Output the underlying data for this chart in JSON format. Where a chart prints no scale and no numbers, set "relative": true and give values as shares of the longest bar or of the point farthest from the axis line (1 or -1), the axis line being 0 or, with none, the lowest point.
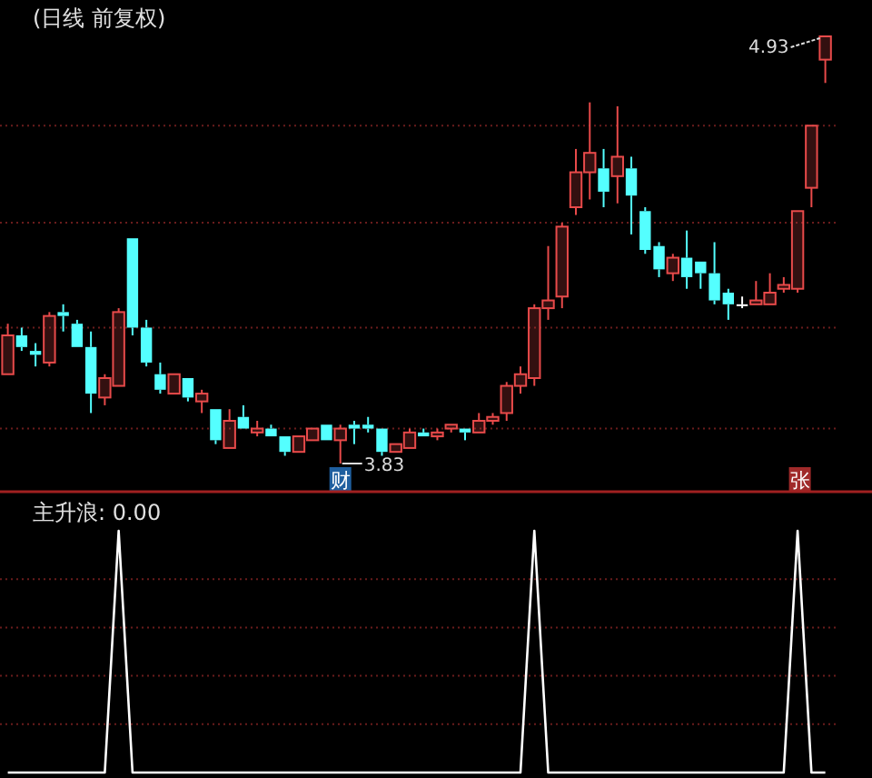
{
  "chart_data": [
    {
      "type": "candlestick",
      "title": "(日线 前复权)",
      "ref_lines": [
        {
          "axis": "y",
          "value": 4.7,
          "color": "#6a1c1c",
          "line_style": "dotted"
        },
        {
          "axis": "y",
          "value": 4.45,
          "color": "#6a1c1c",
          "line_style": "dotted"
        },
        {
          "axis": "y",
          "value": 4.18,
          "color": "#6a1c1c",
          "line_style": "dotted"
        },
        {
          "axis": "y",
          "value": 3.92,
          "color": "#6a1c1c",
          "line_style": "dotted"
        }
      ],
      "categories": [
        null,
        null,
        null,
        null,
        null,
        null,
        null,
        null,
        null,
        null,
        null,
        null,
        null,
        null,
        null,
        null,
        null,
        null,
        null,
        null,
        null,
        null,
        null,
        null,
        null,
        null,
        null,
        null,
        null,
        null,
        null,
        null,
        null,
        null,
        null,
        null,
        null,
        null,
        null,
        null,
        null,
        null,
        null,
        null,
        null,
        null,
        null,
        null,
        null,
        null,
        null,
        null,
        null,
        null,
        null,
        null,
        null,
        null,
        null,
        null
      ],
      "ohlc": [
        [
          4.06,
          4.19,
          4.06,
          4.16
        ],
        [
          4.16,
          4.18,
          4.12,
          4.13
        ],
        [
          4.12,
          4.14,
          4.08,
          4.11
        ],
        [
          4.09,
          4.22,
          4.08,
          4.21
        ],
        [
          4.22,
          4.24,
          4.17,
          4.21
        ],
        [
          4.19,
          4.2,
          4.13,
          4.13
        ],
        [
          4.13,
          4.17,
          3.96,
          4.01
        ],
        [
          4.0,
          4.06,
          3.98,
          4.05
        ],
        [
          4.03,
          4.23,
          4.03,
          4.22
        ],
        [
          4.41,
          4.41,
          4.16,
          4.18
        ],
        [
          4.18,
          4.2,
          4.08,
          4.09
        ],
        [
          4.06,
          4.09,
          4.01,
          4.02
        ],
        [
          4.01,
          4.06,
          4.01,
          4.06
        ],
        [
          4.05,
          4.05,
          3.99,
          4.0
        ],
        [
          3.99,
          4.02,
          3.96,
          4.01
        ],
        [
          3.97,
          3.97,
          3.88,
          3.89
        ],
        [
          3.87,
          3.97,
          3.87,
          3.94
        ],
        [
          3.95,
          3.98,
          3.92,
          3.92
        ],
        [
          3.91,
          3.94,
          3.9,
          3.92
        ],
        [
          3.92,
          3.93,
          3.9,
          3.9
        ],
        [
          3.9,
          3.9,
          3.85,
          3.86
        ],
        [
          3.86,
          3.9,
          3.86,
          3.9
        ],
        [
          3.89,
          3.92,
          3.89,
          3.92
        ],
        [
          3.93,
          3.93,
          3.89,
          3.89
        ],
        [
          3.89,
          3.93,
          3.83,
          3.92
        ],
        [
          3.93,
          3.94,
          3.88,
          3.92
        ],
        [
          3.93,
          3.95,
          3.91,
          3.92
        ],
        [
          3.92,
          3.92,
          3.85,
          3.86
        ],
        [
          3.86,
          3.88,
          3.86,
          3.88
        ],
        [
          3.87,
          3.92,
          3.87,
          3.91
        ],
        [
          3.91,
          3.92,
          3.9,
          3.9
        ],
        [
          3.9,
          3.92,
          3.89,
          3.91
        ],
        [
          3.92,
          3.93,
          3.91,
          3.93
        ],
        [
          3.92,
          3.92,
          3.89,
          3.91
        ],
        [
          3.91,
          3.96,
          3.91,
          3.94
        ],
        [
          3.94,
          3.96,
          3.93,
          3.95
        ],
        [
          3.96,
          4.04,
          3.94,
          4.03
        ],
        [
          4.03,
          4.08,
          4.01,
          4.06
        ],
        [
          4.05,
          4.24,
          4.03,
          4.23
        ],
        [
          4.23,
          4.39,
          4.2,
          4.25
        ],
        [
          4.26,
          4.45,
          4.23,
          4.44
        ],
        [
          4.49,
          4.64,
          4.47,
          4.58
        ],
        [
          4.58,
          4.76,
          4.51,
          4.63
        ],
        [
          4.59,
          4.64,
          4.49,
          4.53
        ],
        [
          4.57,
          4.75,
          4.5,
          4.62
        ],
        [
          4.59,
          4.62,
          4.42,
          4.52
        ],
        [
          4.48,
          4.49,
          4.37,
          4.38
        ],
        [
          4.39,
          4.4,
          4.31,
          4.33
        ],
        [
          4.32,
          4.37,
          4.3,
          4.36
        ],
        [
          4.36,
          4.43,
          4.28,
          4.31
        ],
        [
          4.35,
          4.35,
          4.28,
          4.32
        ],
        [
          4.32,
          4.4,
          4.24,
          4.25
        ],
        [
          4.27,
          4.28,
          4.2,
          4.24
        ],
        [
          4.24,
          4.26,
          4.23,
          4.24
        ],
        [
          4.24,
          4.3,
          4.24,
          4.25
        ],
        [
          4.24,
          4.32,
          4.24,
          4.27
        ],
        [
          4.28,
          4.31,
          4.27,
          4.29
        ],
        [
          4.28,
          4.48,
          4.27,
          4.48
        ],
        [
          4.54,
          4.7,
          4.49,
          4.7
        ],
        [
          4.87,
          4.93,
          4.81,
          4.93
        ]
      ],
      "colors": [
        "#e84a4a",
        "#54ffff",
        "#54ffff",
        "#e84a4a",
        "#54ffff",
        "#54ffff",
        "#54ffff",
        "#e84a4a",
        "#e84a4a",
        "#54ffff",
        "#54ffff",
        "#54ffff",
        "#e84a4a",
        "#54ffff",
        "#e84a4a",
        "#54ffff",
        "#e84a4a",
        "#54ffff",
        "#e84a4a",
        "#54ffff",
        "#54ffff",
        "#e84a4a",
        "#e84a4a",
        "#54ffff",
        "#e84a4a",
        "#54ffff",
        "#54ffff",
        "#54ffff",
        "#e84a4a",
        "#e84a4a",
        "#54ffff",
        "#e84a4a",
        "#e84a4a",
        "#54ffff",
        "#e84a4a",
        "#e84a4a",
        "#e84a4a",
        "#e84a4a",
        "#e84a4a",
        "#e84a4a",
        "#e84a4a",
        "#e84a4a",
        "#e84a4a",
        "#54ffff",
        "#e84a4a",
        "#54ffff",
        "#54ffff",
        "#54ffff",
        "#e84a4a",
        "#54ffff",
        "#54ffff",
        "#54ffff",
        "#54ffff",
        "#ffffff",
        "#e84a4a",
        "#e84a4a",
        "#e84a4a",
        "#e84a4a",
        "#e84a4a",
        "#e84a4a"
      ],
      "annotations": [
        "4.93",
        "3.83",
        "财",
        "张"
      ]
    },
    {
      "type": "line",
      "title": "主升浪: 0.00",
      "relative": true,
      "ref_lines": [
        {
          "axis": "y",
          "value": 0.8,
          "color": "#6a1c1c",
          "line_style": "dotted"
        },
        {
          "axis": "y",
          "value": 0.6,
          "color": "#6a1c1c",
          "line_style": "dotted"
        },
        {
          "axis": "y",
          "value": 0.4,
          "color": "#6a1c1c",
          "line_style": "dotted"
        },
        {
          "axis": "y",
          "value": 0.2,
          "color": "#6a1c1c",
          "line_style": "dotted"
        }
      ],
      "categories": [
        null,
        null,
        null,
        null,
        null,
        null,
        null,
        null,
        null,
        null,
        null,
        null,
        null,
        null,
        null,
        null,
        null,
        null,
        null,
        null,
        null,
        null,
        null,
        null,
        null,
        null,
        null,
        null,
        null,
        null,
        null,
        null,
        null,
        null,
        null,
        null,
        null,
        null,
        null,
        null,
        null,
        null,
        null,
        null,
        null,
        null,
        null,
        null,
        null,
        null,
        null,
        null,
        null,
        null,
        null,
        null,
        null,
        null,
        null,
        null
      ],
      "series": [
        {
          "color": "#ffffff",
          "values": [
            0,
            0,
            0,
            0,
            0,
            0,
            0,
            0,
            1,
            0,
            0,
            0,
            0,
            0,
            0,
            0,
            0,
            0,
            0,
            0,
            0,
            0,
            0,
            0,
            0,
            0,
            0,
            0,
            0,
            0,
            0,
            0,
            0,
            0,
            0,
            0,
            0,
            0,
            1,
            0,
            0,
            0,
            0,
            0,
            0,
            0,
            0,
            0,
            0,
            0,
            0,
            0,
            0,
            0,
            0,
            0,
            0,
            1,
            0,
            0
          ]
        }
      ]
    }
  ]
}
